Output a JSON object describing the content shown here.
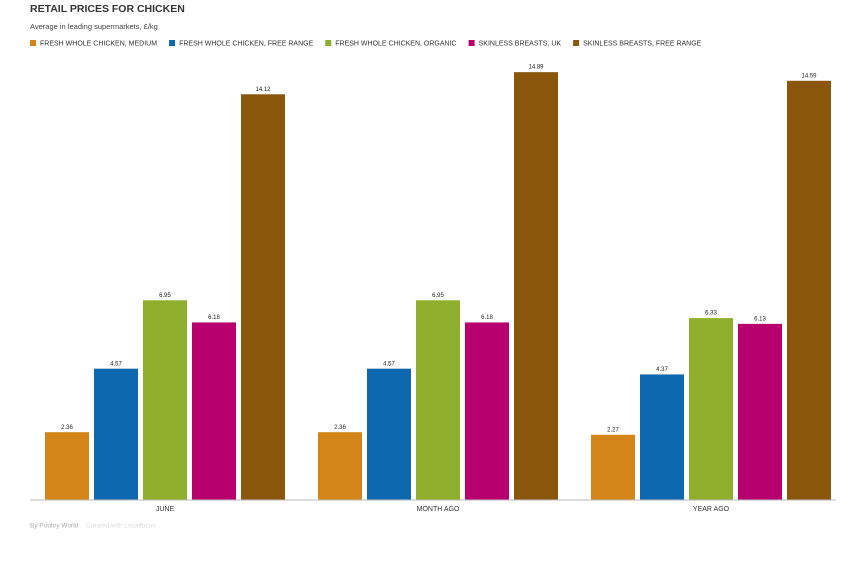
{
  "chart_data": {
    "type": "bar",
    "title": "RETAIL PRICES FOR CHICKEN",
    "subtitle": "Average in leading supermarkets, £/kg",
    "categories": [
      "JUNE",
      "MONTH AGO",
      "YEAR AGO"
    ],
    "series": [
      {
        "name": "FRESH WHOLE CHICKEN, MEDIUM",
        "color": "#d3851a",
        "values": [
          2.36,
          2.36,
          2.27
        ]
      },
      {
        "name": "FRESH WHOLE CHICKEN, FREE RANGE",
        "color": "#0e68b0",
        "values": [
          4.57,
          4.57,
          4.37
        ]
      },
      {
        "name": "FRESH WHOLE CHICKEN, ORGANIC",
        "color": "#8fae2b",
        "values": [
          6.95,
          6.95,
          6.33
        ]
      },
      {
        "name": "SKINLESS BREASTS, UK",
        "color": "#b7006d",
        "values": [
          6.18,
          6.18,
          6.13
        ]
      },
      {
        "name": "SKINLESS BREASTS, FREE RANGE",
        "color": "#8a560b",
        "values": [
          14.12,
          14.89,
          14.59
        ]
      }
    ],
    "ylim": [
      0,
      15
    ],
    "source": "By Poultry World",
    "credit": "Created with Localfocus"
  }
}
